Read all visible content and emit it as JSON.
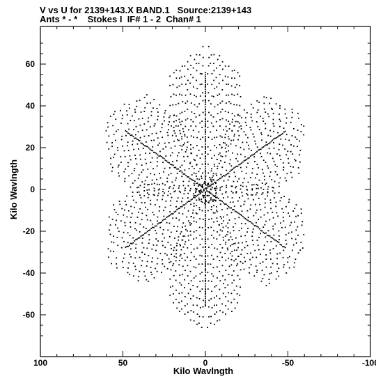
{
  "header": {
    "line1": "V vs U for 2139+143.X BAND.1   Source:2139+143",
    "line2": "Ants * - *    Stokes I  IF# 1 - 2  Chan# 1"
  },
  "chart_data": {
    "type": "scatter",
    "title": "V vs U for 2139+143.X BAND.1   Source:2139+143",
    "subtitle": "Ants * - *    Stokes I  IF# 1 - 2  Chan# 1",
    "xlabel": "Kilo Wavlngth",
    "ylabel": "Kilo Wavlngth",
    "xlim": [
      100,
      -100
    ],
    "ylim": [
      -80,
      78
    ],
    "x_ticks": [
      100,
      50,
      0,
      -50,
      -100
    ],
    "x_tick_labels": [
      "100",
      "50",
      "0",
      "-50",
      "-100"
    ],
    "y_ticks": [
      60,
      40,
      20,
      0,
      -20,
      -40,
      -60
    ],
    "y_tick_labels": [
      "60",
      "40",
      "20",
      "0",
      "-20",
      "-40",
      "-60"
    ],
    "marker_color": "#000000",
    "pattern": "six-arm radial uv-coverage (arms toward ~30, 90, 150, 210, 270, 330 deg), point-symmetric, max radius ~75 kilo-wavelengths",
    "arms": [
      {
        "angle_deg": 90,
        "u_end": 0,
        "v_end": 48
      },
      {
        "angle_deg": 270,
        "u_end": 0,
        "v_end": -48
      },
      {
        "angle_deg": 30,
        "u_end": -52,
        "v_end": 26
      },
      {
        "angle_deg": 210,
        "u_end": 52,
        "v_end": -26
      },
      {
        "angle_deg": 150,
        "u_end": 50,
        "v_end": 29
      },
      {
        "angle_deg": 330,
        "u_end": -50,
        "v_end": -29
      }
    ]
  }
}
